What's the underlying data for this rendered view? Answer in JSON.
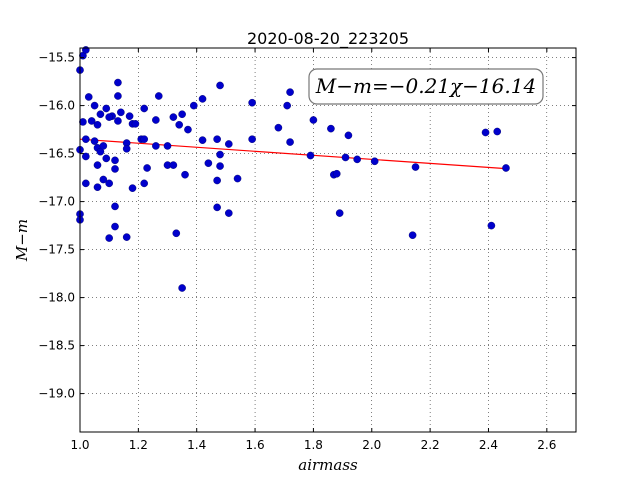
{
  "chart_data": {
    "type": "scatter",
    "title": "2020-08-20_223205",
    "xlabel": "airmass",
    "ylabel": "M−m",
    "xlim": [
      1.0,
      2.7
    ],
    "ylim": [
      -15.4,
      -19.4
    ],
    "y_inverted": true,
    "xticks": [
      1.0,
      1.2,
      1.4,
      1.6,
      1.8,
      2.0,
      2.2,
      2.4,
      2.6
    ],
    "xtick_labels": [
      "1.0",
      "1.2",
      "1.4",
      "1.6",
      "1.8",
      "2.0",
      "2.2",
      "2.4",
      "2.6"
    ],
    "yticks": [
      -15.5,
      -16.0,
      -16.5,
      -17.0,
      -17.5,
      -18.0,
      -18.5,
      -19.0
    ],
    "ytick_labels": [
      "−15.5",
      "−16.0",
      "−16.5",
      "−17.0",
      "−17.5",
      "−18.0",
      "−18.5",
      "−19.0"
    ],
    "grid": true,
    "annotation": "M−m=−0.21χ−16.14",
    "fit": {
      "slope": -0.21,
      "intercept": -16.14,
      "x_range": [
        1.0,
        2.46
      ],
      "color": "#ff0000"
    },
    "marker_color": "#0000cc",
    "points": [
      [
        1.0,
        -15.63
      ],
      [
        1.01,
        -15.48
      ],
      [
        1.02,
        -15.42
      ],
      [
        1.03,
        -15.91
      ],
      [
        1.01,
        -16.17
      ],
      [
        1.04,
        -16.16
      ],
      [
        1.02,
        -16.35
      ],
      [
        1.05,
        -16.0
      ],
      [
        1.07,
        -16.09
      ],
      [
        1.06,
        -16.2
      ],
      [
        1.09,
        -16.03
      ],
      [
        1.11,
        -16.11
      ],
      [
        1.1,
        -16.12
      ],
      [
        1.13,
        -15.76
      ],
      [
        1.13,
        -15.9
      ],
      [
        1.14,
        -16.07
      ],
      [
        1.13,
        -16.16
      ],
      [
        1.17,
        -16.11
      ],
      [
        1.18,
        -16.19
      ],
      [
        1.19,
        -16.19
      ],
      [
        1.21,
        -16.35
      ],
      [
        1.22,
        -16.35
      ],
      [
        1.22,
        -16.03
      ],
      [
        1.27,
        -15.9
      ],
      [
        1.26,
        -16.15
      ],
      [
        1.32,
        -16.12
      ],
      [
        1.34,
        -16.2
      ],
      [
        1.35,
        -16.09
      ],
      [
        1.37,
        -16.25
      ],
      [
        1.39,
        -16.0
      ],
      [
        1.42,
        -15.93
      ],
      [
        1.48,
        -15.79
      ],
      [
        1.42,
        -16.36
      ],
      [
        1.47,
        -16.35
      ],
      [
        1.51,
        -16.4
      ],
      [
        1.59,
        -15.97
      ],
      [
        1.59,
        -16.35
      ],
      [
        1.68,
        -16.23
      ],
      [
        1.71,
        -16.0
      ],
      [
        1.72,
        -15.86
      ],
      [
        1.72,
        -16.38
      ],
      [
        1.8,
        -16.15
      ],
      [
        1.86,
        -16.24
      ],
      [
        1.92,
        -16.31
      ],
      [
        1.0,
        -16.46
      ],
      [
        1.02,
        -16.53
      ],
      [
        1.05,
        -16.37
      ],
      [
        1.06,
        -16.44
      ],
      [
        1.07,
        -16.48
      ],
      [
        1.08,
        -16.42
      ],
      [
        1.06,
        -16.62
      ],
      [
        1.08,
        -16.77
      ],
      [
        1.09,
        -16.55
      ],
      [
        1.12,
        -16.57
      ],
      [
        1.12,
        -16.66
      ],
      [
        1.16,
        -16.39
      ],
      [
        1.16,
        -16.45
      ],
      [
        1.23,
        -16.65
      ],
      [
        1.26,
        -16.42
      ],
      [
        1.3,
        -16.42
      ],
      [
        1.3,
        -16.62
      ],
      [
        1.32,
        -16.62
      ],
      [
        1.36,
        -16.72
      ],
      [
        1.44,
        -16.6
      ],
      [
        1.47,
        -16.78
      ],
      [
        1.48,
        -16.51
      ],
      [
        1.48,
        -16.63
      ],
      [
        1.54,
        -16.76
      ],
      [
        1.79,
        -16.52
      ],
      [
        1.87,
        -16.72
      ],
      [
        1.88,
        -16.71
      ],
      [
        1.91,
        -16.54
      ],
      [
        1.95,
        -16.56
      ],
      [
        2.01,
        -16.58
      ],
      [
        2.15,
        -16.64
      ],
      [
        2.46,
        -16.65
      ],
      [
        2.39,
        -16.28
      ],
      [
        2.43,
        -16.27
      ],
      [
        1.0,
        -17.13
      ],
      [
        1.0,
        -17.19
      ],
      [
        1.02,
        -16.81
      ],
      [
        1.06,
        -16.85
      ],
      [
        1.1,
        -16.81
      ],
      [
        1.1,
        -17.38
      ],
      [
        1.12,
        -17.05
      ],
      [
        1.12,
        -17.26
      ],
      [
        1.16,
        -17.37
      ],
      [
        1.18,
        -16.86
      ],
      [
        1.22,
        -16.81
      ],
      [
        1.33,
        -17.33
      ],
      [
        1.35,
        -17.9
      ],
      [
        1.47,
        -17.06
      ],
      [
        1.51,
        -17.12
      ],
      [
        1.89,
        -17.12
      ],
      [
        2.14,
        -17.35
      ],
      [
        2.41,
        -17.25
      ]
    ]
  }
}
